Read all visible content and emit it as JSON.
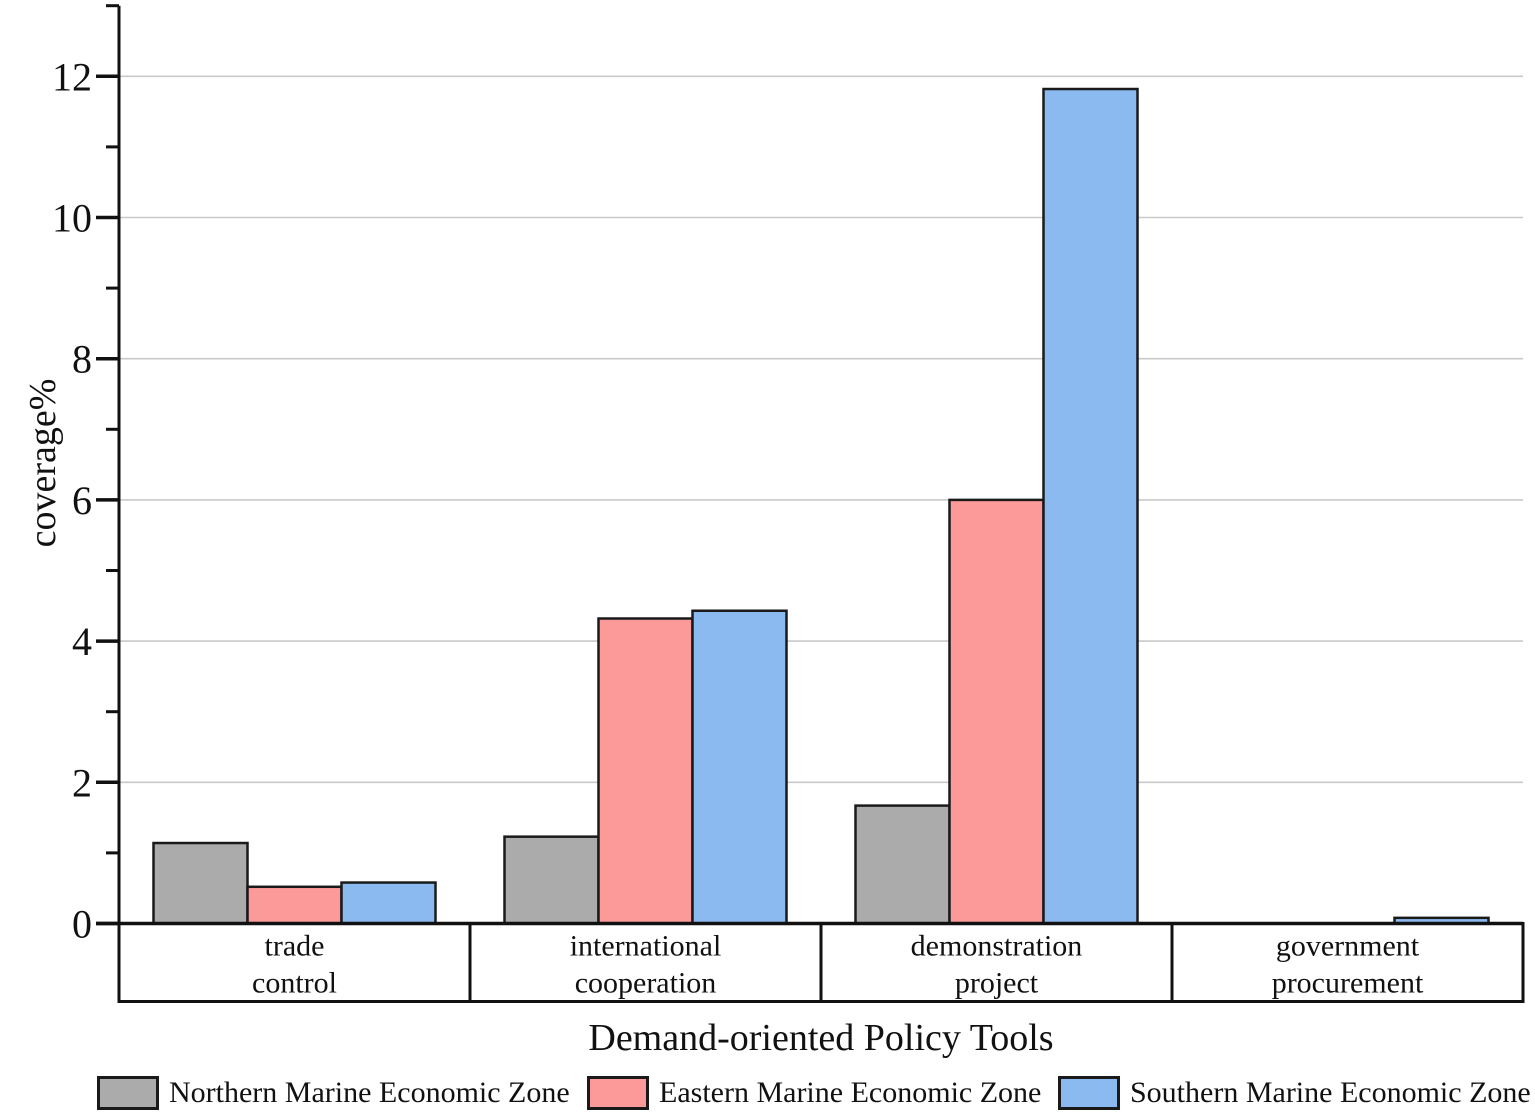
{
  "chart_data": {
    "type": "bar",
    "title": "",
    "xlabel": "Demand-oriented Policy Tools",
    "ylabel": "coverage%",
    "categories": [
      [
        "trade",
        "control"
      ],
      [
        "international",
        "cooperation"
      ],
      [
        "demonstration",
        "project"
      ],
      [
        "government",
        "procurement"
      ]
    ],
    "series": [
      {
        "name": "Northern Marine Economic Zone",
        "color": "#ababab",
        "values": [
          1.14,
          1.23,
          1.67,
          0
        ]
      },
      {
        "name": "Eastern Marine Economic Zone",
        "color": "#fc9999",
        "values": [
          0.52,
          4.32,
          6.0,
          0
        ]
      },
      {
        "name": "Southern Marine Economic Zone",
        "color": "#8bbaf0",
        "values": [
          0.58,
          4.43,
          11.82,
          0.08
        ]
      }
    ],
    "ylim": [
      0,
      13
    ],
    "yticks_major": [
      0,
      2,
      4,
      6,
      8,
      10,
      12
    ],
    "yticks_minor": [
      1,
      3,
      5,
      7,
      9,
      11,
      13
    ],
    "grid": "horizontal gridlines at major ticks 2-12",
    "legend_position": "bottom-row"
  },
  "colors": {
    "background": "#ffffff",
    "axis": "#111111",
    "bar_stroke": "#1a1a1a",
    "gridline": "#c9c9c9",
    "text": "#111111"
  }
}
